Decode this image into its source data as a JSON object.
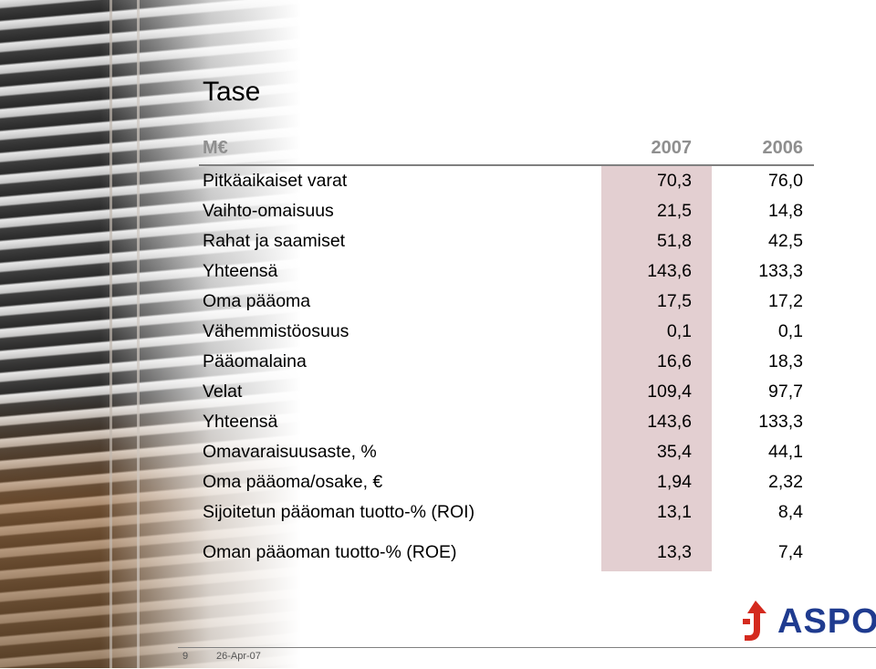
{
  "slide": {
    "title": "Tase",
    "page_number": "9",
    "date": "26-Apr-07"
  },
  "table": {
    "header": {
      "label": "M€",
      "col1": "2007",
      "col2": "2006"
    },
    "rows": [
      {
        "label": "Pitkäaikaiset varat",
        "col1": "70,3",
        "col2": "76,0"
      },
      {
        "label": "Vaihto-omaisuus",
        "col1": "21,5",
        "col2": "14,8"
      },
      {
        "label": "Rahat ja saamiset",
        "col1": "51,8",
        "col2": "42,5"
      },
      {
        "label": "Yhteensä",
        "col1": "143,6",
        "col2": "133,3"
      },
      {
        "label": "Oma pääoma",
        "col1": "17,5",
        "col2": "17,2"
      },
      {
        "label": "Vähemmistöosuus",
        "col1": "0,1",
        "col2": "0,1"
      },
      {
        "label": "Pääomalaina",
        "col1": "16,6",
        "col2": "18,3"
      },
      {
        "label": "Velat",
        "col1": "109,4",
        "col2": "97,7"
      },
      {
        "label": "Yhteensä",
        "col1": "143,6",
        "col2": "133,3"
      },
      {
        "label": "Omavaraisuusaste, %",
        "col1": "35,4",
        "col2": "44,1"
      },
      {
        "label": "Oma pääoma/osake, €",
        "col1": "1,94",
        "col2": "2,32"
      },
      {
        "label": "Sijoitetun pääoman tuotto-% (ROI)",
        "col1": "13,1",
        "col2": "8,4"
      },
      {
        "label": "Oman pääoman tuotto-% (ROE)",
        "col1": "13,3",
        "col2": "7,4"
      }
    ]
  },
  "logo": {
    "text": "ASPO",
    "color": "#1f3b8f",
    "mark_color": "#d42a1e"
  },
  "colors": {
    "highlight_column": "#e3cfd1",
    "header_text": "#8f8f8f"
  }
}
